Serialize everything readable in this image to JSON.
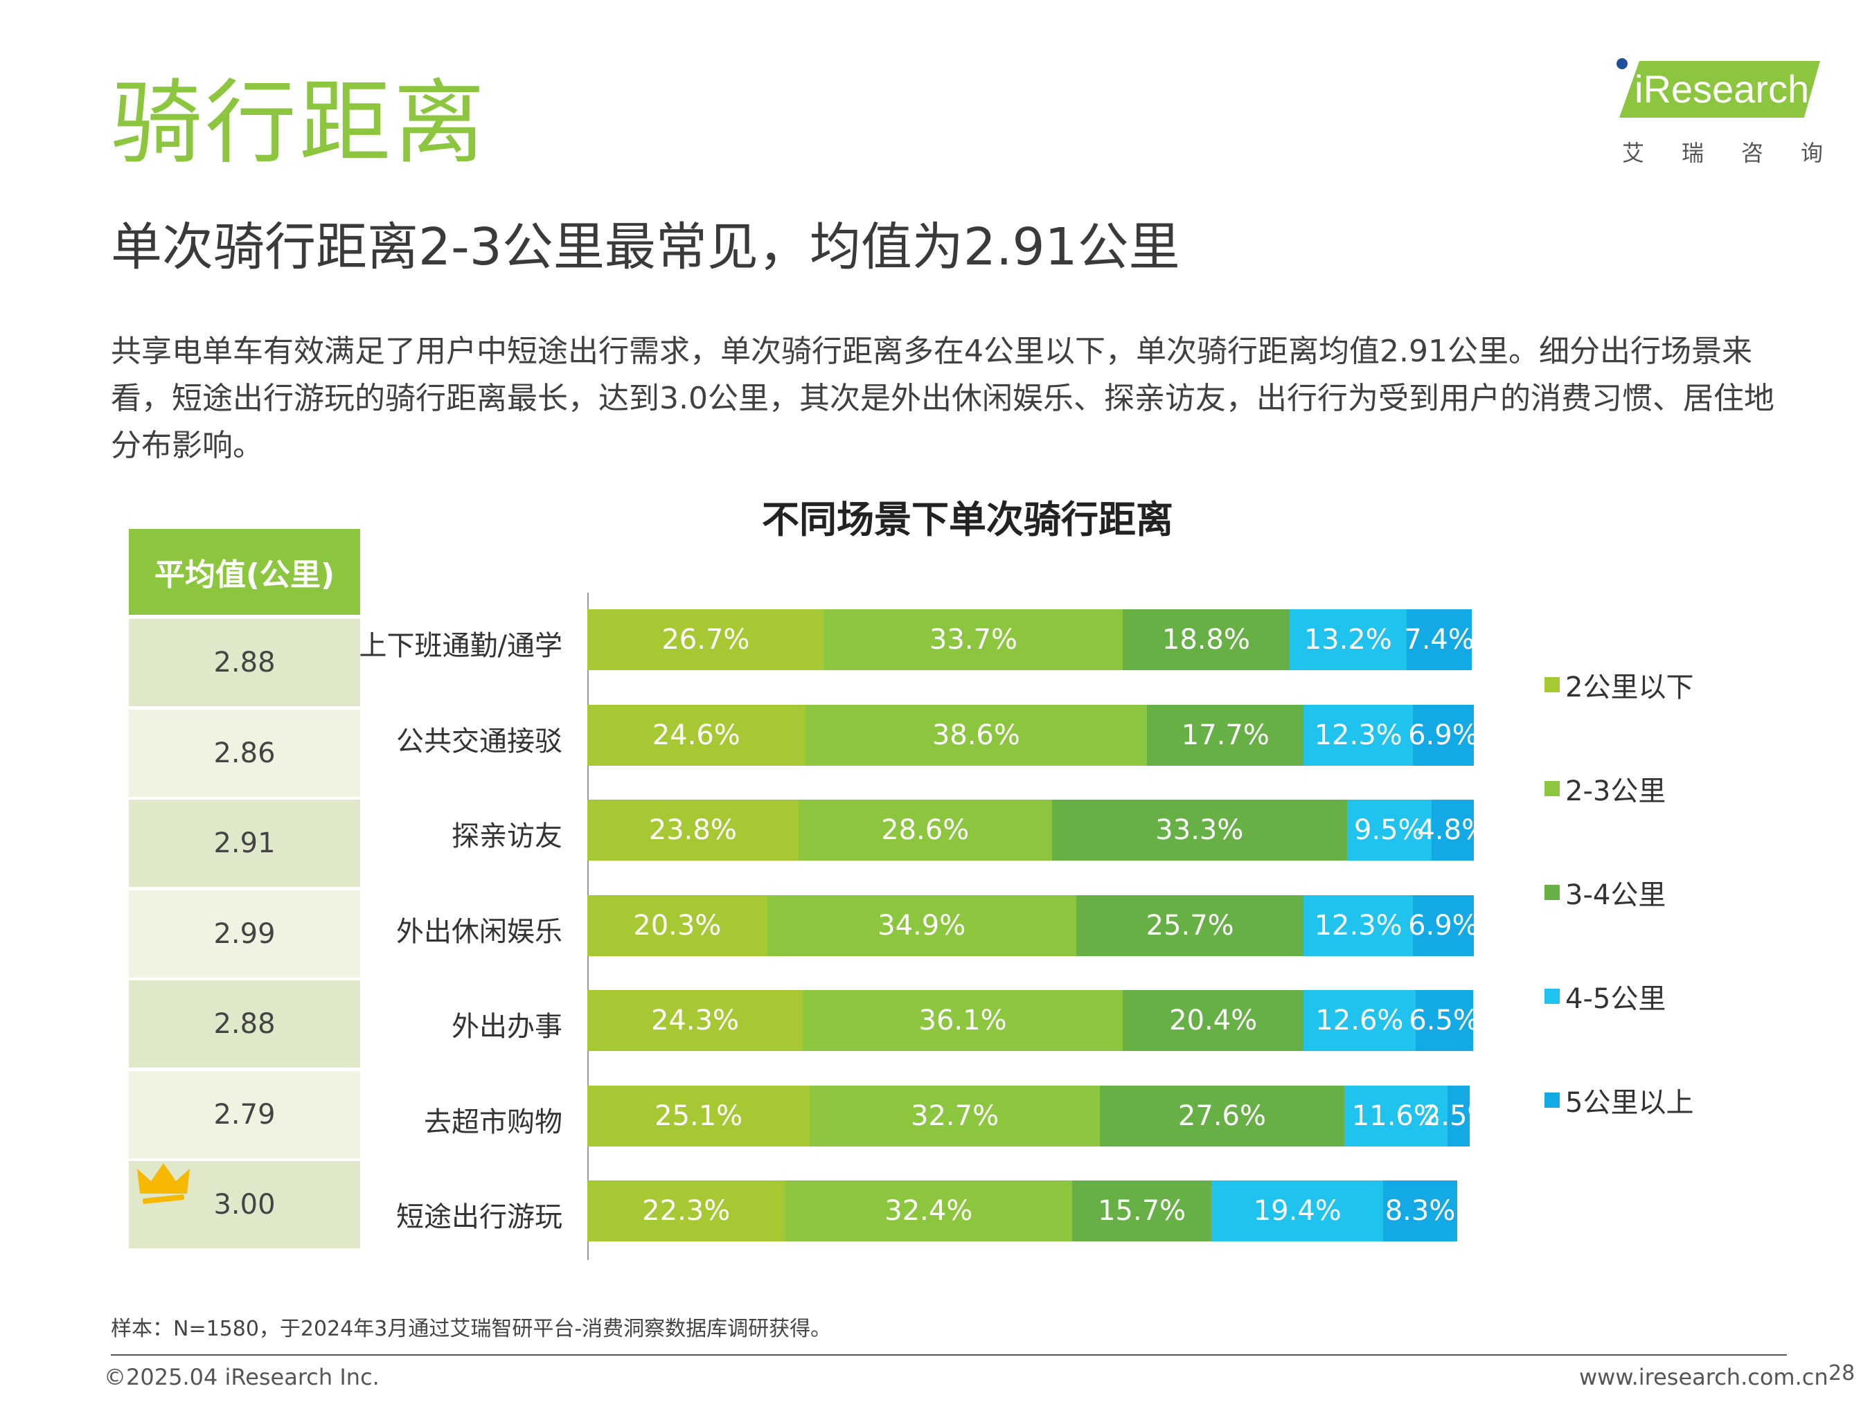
{
  "header": {
    "title": "骑行距离",
    "headline": "单次骑行距离2-3公里最常见，均值为2.91公里",
    "intro": "共享电单车有效满足了用户中短途出行需求，单次骑行距离多在4公里以下，单次骑行距离均值2.91公里。细分出行场景来看，短途出行游玩的骑行距离最长，达到3.0公里，其次是外出休闲娱乐、探亲访友，出行行为受到用户的消费习惯、居住地分布影响。"
  },
  "logo": {
    "text": "iResearch",
    "sub": "艾瑞咨询"
  },
  "avg_table": {
    "header": "平均值(公里)",
    "values": [
      "2.88",
      "2.86",
      "2.91",
      "2.99",
      "2.88",
      "2.79",
      "3.00"
    ]
  },
  "chart_data": {
    "type": "bar",
    "orientation": "horizontal",
    "stacked": true,
    "title": "不同场景下单次骑行距离",
    "categories": [
      "上下班通勤/通学",
      "公共交通接驳",
      "探亲访友",
      "外出休闲娱乐",
      "外出办事",
      "去超市购物",
      "短途出行游玩"
    ],
    "series": [
      {
        "name": "2公里以下",
        "color": "#a6c933",
        "values": [
          26.7,
          24.6,
          23.8,
          20.3,
          24.3,
          25.1,
          22.3
        ],
        "labels": [
          "26.7%",
          "24.6%",
          "23.8%",
          "20.3%",
          "24.3%",
          "25.1%",
          "22.3%"
        ]
      },
      {
        "name": "2-3公里",
        "color": "#8cc63e",
        "values": [
          33.7,
          38.6,
          28.6,
          34.9,
          36.1,
          32.7,
          32.4
        ],
        "labels": [
          "33.7%",
          "38.6%",
          "28.6%",
          "34.9%",
          "36.1%",
          "32.7%",
          "32.4%"
        ]
      },
      {
        "name": "3-4公里",
        "color": "#66b045",
        "values": [
          18.8,
          17.7,
          33.3,
          25.7,
          20.4,
          27.6,
          15.7
        ],
        "labels": [
          "18.8%",
          "17.7%",
          "33.3%",
          "25.7%",
          "20.4%",
          "27.6%",
          "15.7%"
        ]
      },
      {
        "name": "4-5公里",
        "color": "#1fc3ee",
        "values": [
          13.2,
          12.3,
          9.5,
          12.3,
          12.6,
          11.6,
          19.4
        ],
        "labels": [
          "13.2%",
          "12.3%",
          "9.5%",
          "12.3%",
          "12.6%",
          "11.6%",
          "19.4%"
        ]
      },
      {
        "name": "5公里以上",
        "color": "#13a9e4",
        "values": [
          7.4,
          6.9,
          4.8,
          6.9,
          6.5,
          2.5,
          8.3
        ],
        "labels": [
          "7.4%",
          "6.9%",
          "4.8%",
          "6.9%",
          "6.5%",
          "2.5%",
          "8.3%"
        ]
      }
    ],
    "xlim": [
      0,
      100
    ],
    "legend": "right"
  },
  "footer": {
    "note": "样本：N=1580，于2024年3月通过艾瑞智研平台-消费洞察数据库调研获得。",
    "copyright": "©2025.04 iResearch Inc.",
    "website": "www.iresearch.com.cn",
    "page": "28"
  }
}
